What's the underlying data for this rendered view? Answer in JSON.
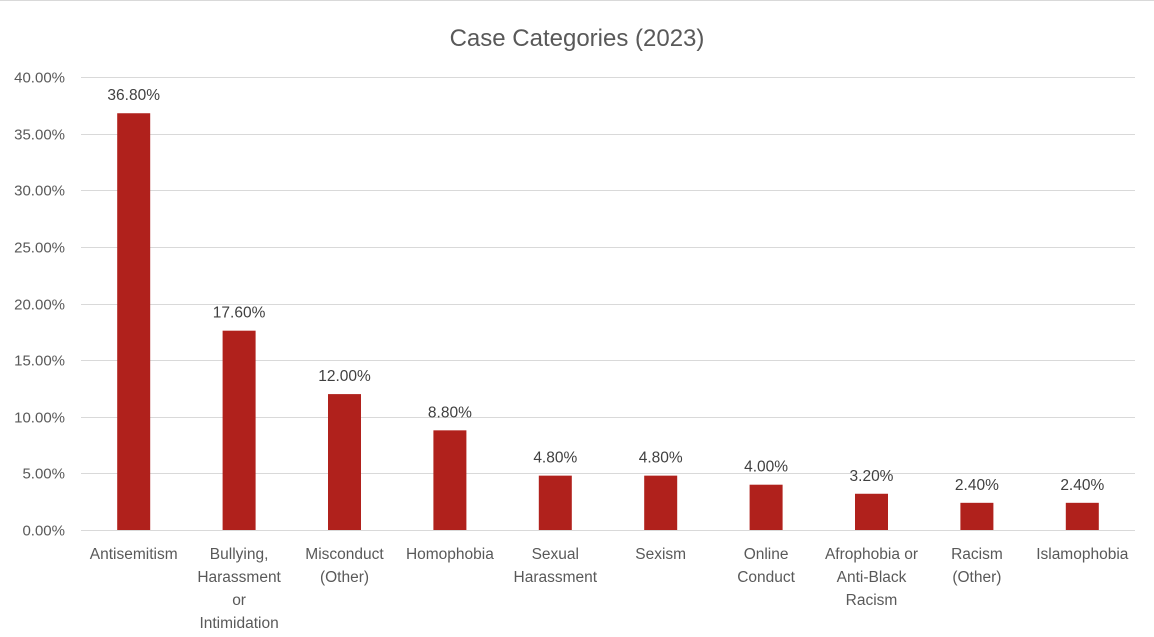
{
  "chart_data": {
    "type": "bar",
    "title": "Case Categories (2023)",
    "xlabel": "",
    "ylabel": "",
    "ylim": [
      0,
      40
    ],
    "yticks": [
      "0.00%",
      "5.00%",
      "10.00%",
      "15.00%",
      "20.00%",
      "25.00%",
      "30.00%",
      "35.00%",
      "40.00%"
    ],
    "ytick_values": [
      0,
      5,
      10,
      15,
      20,
      25,
      30,
      35,
      40
    ],
    "grid": true,
    "legend": "none",
    "bar_color": "#B0211C",
    "categories": [
      [
        "Antisemitism"
      ],
      [
        "Bullying,",
        "Harassment",
        "or",
        "Intimidation"
      ],
      [
        "Misconduct",
        "(Other)"
      ],
      [
        "Homophobia"
      ],
      [
        "Sexual",
        "Harassment"
      ],
      [
        "Sexism"
      ],
      [
        "Online",
        "Conduct"
      ],
      [
        "Afrophobia or",
        "Anti-Black",
        "Racism"
      ],
      [
        "Racism",
        "(Other)"
      ],
      [
        "Islamophobia"
      ]
    ],
    "values": [
      36.8,
      17.6,
      12.0,
      8.8,
      4.8,
      4.8,
      4.0,
      3.2,
      2.4,
      2.4
    ],
    "data_labels": [
      "36.80%",
      "17.60%",
      "12.00%",
      "8.80%",
      "4.80%",
      "4.80%",
      "4.00%",
      "3.20%",
      "2.40%",
      "2.40%"
    ]
  }
}
